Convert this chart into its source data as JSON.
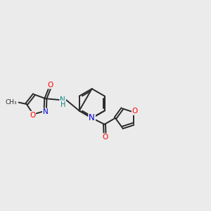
{
  "bg_color": "#ebebeb",
  "bond_color": "#2a2a2a",
  "bond_width": 1.4,
  "dbo": 0.055,
  "atom_colors": {
    "O": "#ff0000",
    "N": "#0000cc",
    "NH": "#008888",
    "C": "#2a2a2a"
  },
  "figsize": [
    3.0,
    3.0
  ],
  "dpi": 100
}
